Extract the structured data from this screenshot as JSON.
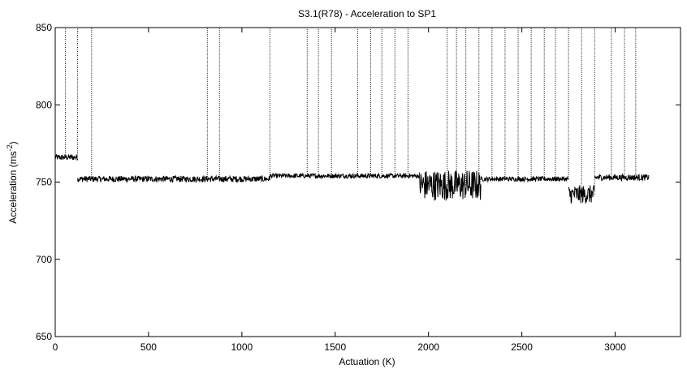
{
  "chart_data": {
    "type": "scatter",
    "title": "S3.1(R78) - Acceleration to SP1",
    "xlabel": "Actuation (K)",
    "ylabel_main": "Acceleration (ms",
    "ylabel_sup": "-2",
    "ylabel_close": ")",
    "xlim": [
      0,
      3350
    ],
    "ylim": [
      650,
      850
    ],
    "xticks": [
      0,
      500,
      1000,
      1500,
      2000,
      2500,
      3000
    ],
    "yticks": [
      650,
      700,
      750,
      800,
      850
    ],
    "grid": false,
    "legend": "none",
    "color": "#000000",
    "series": [
      {
        "baseline_segments": [
          {
            "x_start": 0,
            "x_end": 120,
            "y": 766,
            "spread": 2
          },
          {
            "x_start": 120,
            "x_end": 1150,
            "y": 752,
            "spread": 2
          },
          {
            "x_start": 1150,
            "x_end": 1950,
            "y": 754,
            "spread": 1.5
          },
          {
            "x_start": 1950,
            "x_end": 2280,
            "y": 748,
            "spread": 10
          },
          {
            "x_start": 2280,
            "x_end": 2750,
            "y": 752,
            "spread": 1.5
          },
          {
            "x_start": 2750,
            "x_end": 2890,
            "y": 742,
            "spread": 6
          },
          {
            "x_start": 2890,
            "x_end": 3180,
            "y": 753,
            "spread": 2
          }
        ],
        "spikes_x": [
          55,
          120,
          195,
          815,
          880,
          1150,
          1350,
          1410,
          1480,
          1620,
          1690,
          1750,
          1820,
          1890,
          2100,
          2150,
          2200,
          2270,
          2340,
          2410,
          2480,
          2550,
          2620,
          2680,
          2750,
          2820,
          2890,
          2980,
          3050,
          3110
        ],
        "spike_top": 850
      }
    ]
  }
}
